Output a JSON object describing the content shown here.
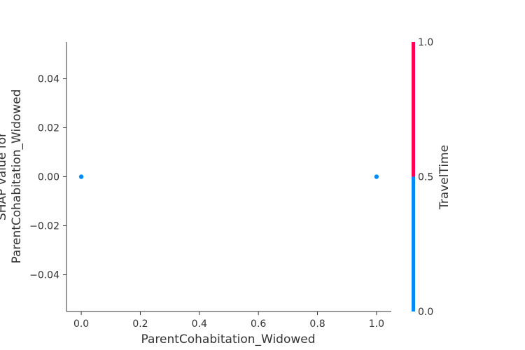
{
  "chart_data": {
    "type": "scatter",
    "xlabel": "ParentCohabitation_Widowed",
    "ylabel_lines": [
      "SHAP value for",
      "ParentCohabitation_Widowed"
    ],
    "xlim": [
      -0.05,
      1.05
    ],
    "ylim": [
      -0.055,
      0.055
    ],
    "xticks": [
      0.0,
      0.2,
      0.4,
      0.6,
      0.8,
      1.0
    ],
    "xtick_labels": [
      "0.0",
      "0.2",
      "0.4",
      "0.6",
      "0.8",
      "1.0"
    ],
    "yticks": [
      0.04,
      0.02,
      0.0,
      -0.02,
      -0.04
    ],
    "ytick_labels": [
      "0.04",
      "0.02",
      "0.00",
      "−0.02",
      "−0.04"
    ],
    "grid": false,
    "points": [
      {
        "x": 0.0,
        "y": 0.0,
        "color_value": 0.0
      },
      {
        "x": 1.0,
        "y": 0.0,
        "color_value": 0.0
      }
    ],
    "colorbar": {
      "label": "TravelTime",
      "range": [
        0.0,
        1.0
      ],
      "ticks": [
        1.0,
        0.5,
        0.0
      ],
      "tick_labels": [
        "1.0",
        "0.5",
        "0.0"
      ],
      "low_color": "#008bfb",
      "high_color": "#ff0052"
    }
  }
}
